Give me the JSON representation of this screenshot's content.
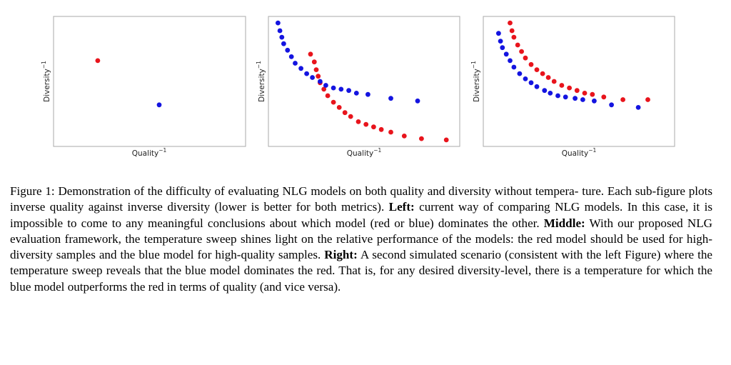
{
  "figure": {
    "colors": {
      "red": "#e8141c",
      "blue": "#1414e0"
    },
    "xlabel": "Quality",
    "ylabel": "Diversity",
    "exponent": "−1"
  },
  "chart_data": [
    {
      "type": "scatter",
      "title": "",
      "xlabel": "Quality^-1",
      "ylabel": "Diversity^-1",
      "xlim": [
        0,
        1
      ],
      "ylim": [
        0,
        1
      ],
      "grid": false,
      "series": [
        {
          "color": "red",
          "points": [
            [
              0.23,
              0.66
            ]
          ]
        },
        {
          "color": "blue",
          "points": [
            [
              0.55,
              0.32
            ]
          ]
        }
      ]
    },
    {
      "type": "scatter",
      "title": "",
      "xlabel": "Quality^-1",
      "ylabel": "Diversity^-1",
      "xlim": [
        0,
        1
      ],
      "ylim": [
        0,
        1
      ],
      "grid": false,
      "series": [
        {
          "color": "red",
          "points": [
            [
              0.22,
              0.71
            ],
            [
              0.24,
              0.65
            ],
            [
              0.25,
              0.59
            ],
            [
              0.26,
              0.54
            ],
            [
              0.27,
              0.49
            ],
            [
              0.29,
              0.44
            ],
            [
              0.31,
              0.39
            ],
            [
              0.34,
              0.34
            ],
            [
              0.37,
              0.3
            ],
            [
              0.4,
              0.26
            ],
            [
              0.43,
              0.23
            ],
            [
              0.47,
              0.19
            ],
            [
              0.51,
              0.17
            ],
            [
              0.55,
              0.15
            ],
            [
              0.59,
              0.13
            ],
            [
              0.64,
              0.11
            ],
            [
              0.71,
              0.08
            ],
            [
              0.8,
              0.06
            ],
            [
              0.93,
              0.05
            ]
          ]
        },
        {
          "color": "blue",
          "points": [
            [
              0.05,
              0.95
            ],
            [
              0.06,
              0.89
            ],
            [
              0.07,
              0.84
            ],
            [
              0.08,
              0.79
            ],
            [
              0.1,
              0.74
            ],
            [
              0.12,
              0.69
            ],
            [
              0.14,
              0.64
            ],
            [
              0.17,
              0.6
            ],
            [
              0.2,
              0.56
            ],
            [
              0.23,
              0.53
            ],
            [
              0.27,
              0.5
            ],
            [
              0.3,
              0.47
            ],
            [
              0.34,
              0.45
            ],
            [
              0.38,
              0.44
            ],
            [
              0.42,
              0.43
            ],
            [
              0.46,
              0.41
            ],
            [
              0.52,
              0.4
            ],
            [
              0.64,
              0.37
            ],
            [
              0.78,
              0.35
            ]
          ]
        }
      ]
    },
    {
      "type": "scatter",
      "title": "",
      "xlabel": "Quality^-1",
      "ylabel": "Diversity^-1",
      "xlim": [
        0,
        1
      ],
      "ylim": [
        0,
        1
      ],
      "grid": false,
      "series": [
        {
          "color": "red",
          "points": [
            [
              0.14,
              0.95
            ],
            [
              0.15,
              0.89
            ],
            [
              0.16,
              0.84
            ],
            [
              0.18,
              0.78
            ],
            [
              0.2,
              0.73
            ],
            [
              0.22,
              0.68
            ],
            [
              0.25,
              0.63
            ],
            [
              0.28,
              0.59
            ],
            [
              0.31,
              0.56
            ],
            [
              0.34,
              0.53
            ],
            [
              0.37,
              0.5
            ],
            [
              0.41,
              0.47
            ],
            [
              0.45,
              0.45
            ],
            [
              0.49,
              0.43
            ],
            [
              0.53,
              0.41
            ],
            [
              0.57,
              0.4
            ],
            [
              0.63,
              0.38
            ],
            [
              0.73,
              0.36
            ],
            [
              0.86,
              0.36
            ]
          ]
        },
        {
          "color": "blue",
          "points": [
            [
              0.08,
              0.87
            ],
            [
              0.09,
              0.81
            ],
            [
              0.1,
              0.76
            ],
            [
              0.12,
              0.71
            ],
            [
              0.14,
              0.66
            ],
            [
              0.16,
              0.61
            ],
            [
              0.19,
              0.56
            ],
            [
              0.22,
              0.52
            ],
            [
              0.25,
              0.49
            ],
            [
              0.28,
              0.46
            ],
            [
              0.32,
              0.43
            ],
            [
              0.35,
              0.41
            ],
            [
              0.39,
              0.39
            ],
            [
              0.43,
              0.38
            ],
            [
              0.48,
              0.37
            ],
            [
              0.52,
              0.36
            ],
            [
              0.58,
              0.35
            ],
            [
              0.67,
              0.32
            ],
            [
              0.81,
              0.3
            ]
          ]
        }
      ]
    }
  ],
  "caption": {
    "p1": "Figure 1: Demonstration of the difficulty of evaluating NLG models on both quality and diversity without tempera- ture. Each sub-figure plots inverse quality against inverse diversity (lower is better for both metrics). ",
    "left_label": "Left:",
    "p2": " current way of comparing NLG models. In this case, it is impossible to come to any meaningful conclusions about which model (red or blue) dominates the other. ",
    "middle_label": "Middle:",
    "p3": " With our proposed NLG evaluation framework, the temperature sweep shines light on the relative performance of the models: the red model should be used for high-diversity samples and the blue model for high-quality samples. ",
    "right_label": "Right:",
    "p4": " A second simulated scenario (consistent with the left Figure) where the temperature sweep reveals that the blue model dominates the red. That is, for any desired diversity-level, there is a temperature for which the blue model outperforms the red in terms of quality (and vice versa)."
  }
}
